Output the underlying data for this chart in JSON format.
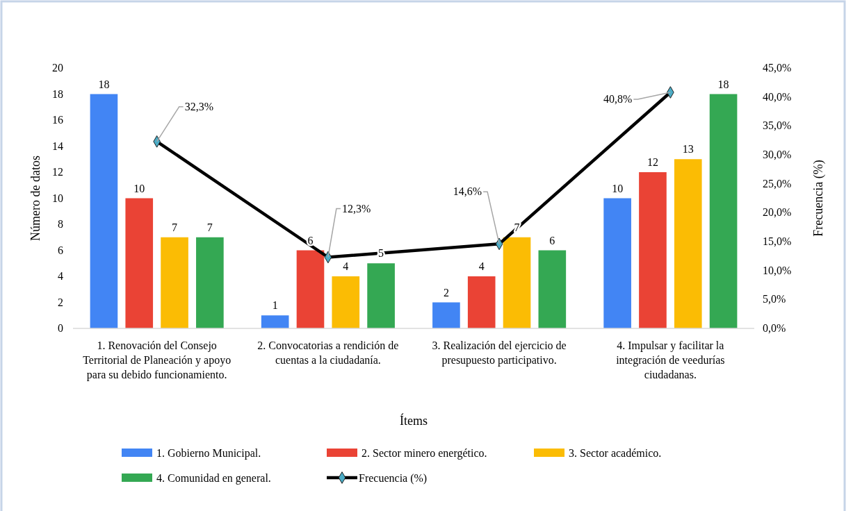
{
  "chart_data": {
    "type": "bar",
    "xlabel": "Ítems",
    "ylabel": "Número de datos",
    "y2label": "Frecuencia (%)",
    "categories": [
      "1. Renovación del Consejo Territorial de Planeación y apoyo para su debido funcionamiento.",
      "2. Convocatorias a rendición de cuentas a la ciudadanía.",
      "3. Realización del ejercicio de presupuesto participativo.",
      "4. Impulsar y facilitar la integración de veedurías ciudadanas."
    ],
    "series": [
      {
        "name": "1. Gobierno Municipal.",
        "color": "#4285f4",
        "values": [
          18,
          1,
          2,
          10
        ],
        "value_labels": [
          "18",
          "1",
          "2",
          "10"
        ]
      },
      {
        "name": "2. Sector minero energético.",
        "color": "#ea4335",
        "values": [
          10,
          6,
          4,
          12
        ],
        "value_labels": [
          "10",
          "6",
          "4",
          "12"
        ]
      },
      {
        "name": "3. Sector académico.",
        "color": "#fbbc04",
        "values": [
          7,
          4,
          7,
          13
        ],
        "value_labels": [
          "7",
          "4",
          "7",
          "13"
        ]
      },
      {
        "name": "4. Comunidad en general.",
        "color": "#34a853",
        "values": [
          7,
          5,
          6,
          18
        ],
        "value_labels": [
          "7",
          "5",
          "6",
          "18"
        ]
      },
      {
        "name": "Frecuencia (%)",
        "type": "line",
        "axis": "y2",
        "color": "#000000",
        "marker": "diamond",
        "values": [
          32.3,
          12.3,
          14.6,
          40.8
        ],
        "value_labels": [
          "32,3%",
          "12,3%",
          "14,6%",
          "40,8%"
        ]
      }
    ],
    "ylim": [
      0,
      20
    ],
    "yticks": [
      0,
      2,
      4,
      6,
      8,
      10,
      12,
      14,
      16,
      18,
      20
    ],
    "y2lim": [
      0,
      45
    ],
    "y2ticks": [
      {
        "value": 0,
        "label": "0,0%"
      },
      {
        "value": 5,
        "label": "5,0%"
      },
      {
        "value": 10,
        "label": "10,0%"
      },
      {
        "value": 15,
        "label": "15,0%"
      },
      {
        "value": 20,
        "label": "20,0%"
      },
      {
        "value": 25,
        "label": "25,0%"
      },
      {
        "value": 30,
        "label": "30,0%"
      },
      {
        "value": 35,
        "label": "35,0%"
      },
      {
        "value": 40,
        "label": "40,0%"
      },
      {
        "value": 45,
        "label": "45,0%"
      }
    ],
    "grid": false,
    "legend": "bottom"
  }
}
